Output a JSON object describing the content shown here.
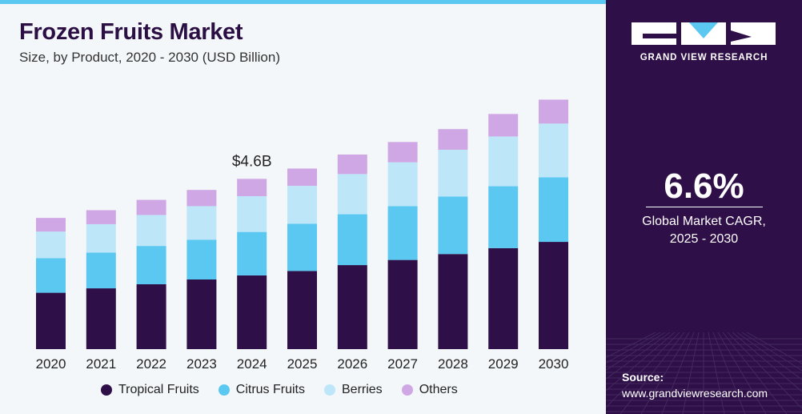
{
  "header": {
    "title": "Frozen Fruits Market",
    "subtitle": "Size, by Product, 2020 - 2030 (USD Billion)"
  },
  "chart_data": {
    "type": "bar",
    "stacked": true,
    "categories": [
      "2020",
      "2021",
      "2022",
      "2023",
      "2024",
      "2025",
      "2026",
      "2027",
      "2028",
      "2029",
      "2030"
    ],
    "series": [
      {
        "name": "Tropical Fruits",
        "color": "#2e0f47",
        "values": [
          1.53,
          1.65,
          1.76,
          1.89,
          2.0,
          2.12,
          2.28,
          2.42,
          2.58,
          2.74,
          2.91
        ]
      },
      {
        "name": "Citrus Fruits",
        "color": "#5bc8f2",
        "values": [
          0.94,
          0.97,
          1.04,
          1.08,
          1.18,
          1.28,
          1.38,
          1.46,
          1.56,
          1.68,
          1.75
        ]
      },
      {
        "name": "Berries",
        "color": "#bde6f9",
        "values": [
          0.72,
          0.77,
          0.84,
          0.91,
          0.97,
          1.03,
          1.09,
          1.19,
          1.27,
          1.35,
          1.46
        ]
      },
      {
        "name": "Others",
        "color": "#cfa7e5",
        "values": [
          0.37,
          0.38,
          0.41,
          0.44,
          0.47,
          0.47,
          0.53,
          0.55,
          0.56,
          0.61,
          0.65
        ]
      }
    ],
    "annotations": [
      {
        "category": "2024",
        "text": "$4.6B"
      }
    ],
    "ylim": [
      0,
      7.3
    ],
    "grid": false,
    "legend": "bottom"
  },
  "sidebar": {
    "brand": "GRAND VIEW RESEARCH",
    "cagr_value": "6.6%",
    "cagr_label_line1": "Global Market CAGR,",
    "cagr_label_line2": "2025 - 2030",
    "source_label": "Source:",
    "source_url": "www.grandviewresearch.com"
  }
}
